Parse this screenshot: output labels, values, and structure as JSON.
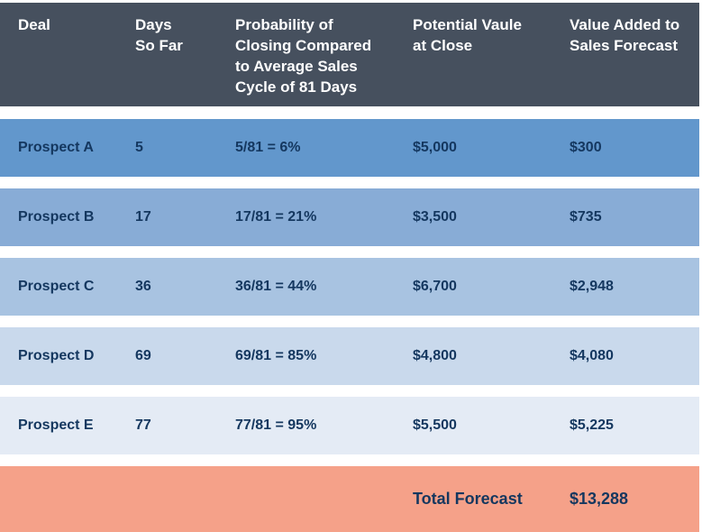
{
  "palette": {
    "header_bg": "#46505E",
    "header_text": "#FFFFFF",
    "body_text": "#14375F",
    "footer_bg": "#F5A189",
    "row_bgs": [
      "#6297CC",
      "#88ACD6",
      "#A8C3E1",
      "#C9D9EC",
      "#E4EBF5"
    ]
  },
  "chart_data": {
    "type": "table",
    "columns": [
      "Deal",
      "Days\nSo Far",
      "Probability of\nClosing Compared\nto Average Sales\nCycle of 81 Days",
      "Potential Vaule\nat Close",
      "Value Added to\nSales Forecast"
    ],
    "rows": [
      {
        "deal": "Prospect A",
        "days": "5",
        "probability": "5/81 = 6%",
        "potential": "$5,000",
        "added": "$300"
      },
      {
        "deal": "Prospect B",
        "days": "17",
        "probability": "17/81 = 21%",
        "potential": "$3,500",
        "added": "$735"
      },
      {
        "deal": "Prospect C",
        "days": "36",
        "probability": "36/81 = 44%",
        "potential": "$6,700",
        "added": "$2,948"
      },
      {
        "deal": "Prospect D",
        "days": "69",
        "probability": "69/81 = 85%",
        "potential": "$4,800",
        "added": "$4,080"
      },
      {
        "deal": "Prospect E",
        "days": "77",
        "probability": "77/81 = 95%",
        "potential": "$5,500",
        "added": "$5,225"
      }
    ],
    "footer": {
      "label": "Total Forecast",
      "value": "$13,288"
    },
    "notes": {
      "average_sales_cycle_days": 81,
      "total_forecast_value": 13288
    }
  }
}
